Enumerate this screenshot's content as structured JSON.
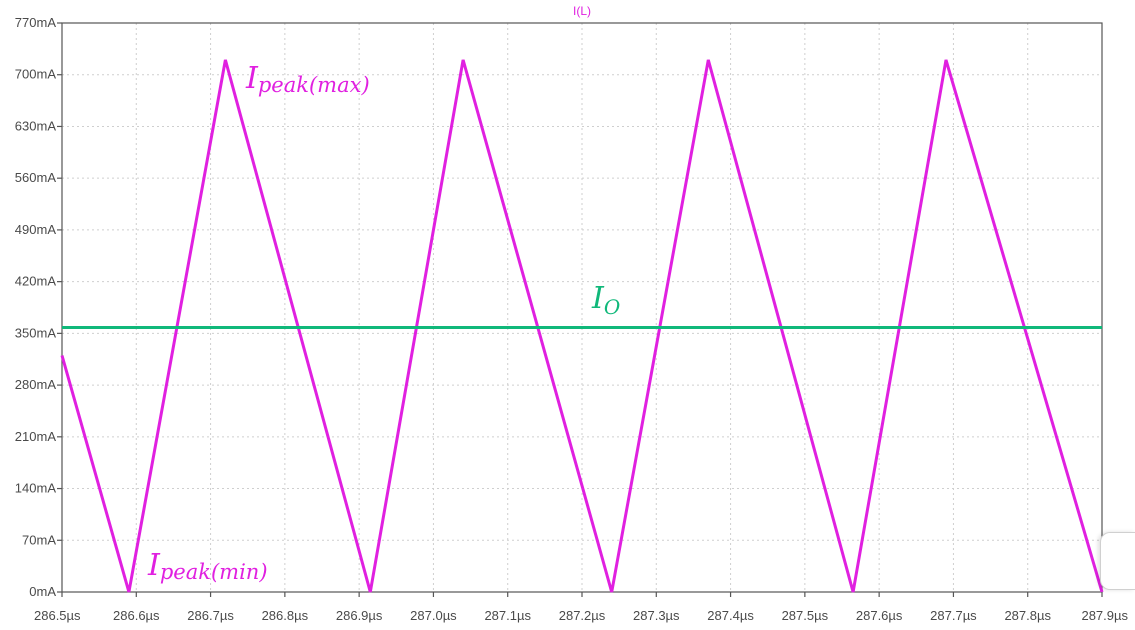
{
  "chart_data": {
    "type": "line",
    "title": "I(L)",
    "xlabel": "",
    "ylabel": "",
    "xlim": [
      286.5,
      287.9
    ],
    "ylim": [
      0,
      770
    ],
    "x_ticks": [
      "286.5µs",
      "286.6µs",
      "286.7µs",
      "286.8µs",
      "286.9µs",
      "287.0µs",
      "287.1µs",
      "287.2µs",
      "287.3µs",
      "287.4µs",
      "287.5µs",
      "287.6µs",
      "287.7µs",
      "287.8µs",
      "287.9µs"
    ],
    "y_ticks": [
      "0mA",
      "70mA",
      "140mA",
      "210mA",
      "280mA",
      "350mA",
      "420mA",
      "490mA",
      "560mA",
      "630mA",
      "700mA",
      "770mA"
    ],
    "y_tick_values": [
      0,
      70,
      140,
      210,
      280,
      350,
      420,
      490,
      560,
      630,
      700,
      770
    ],
    "grid": true,
    "series": [
      {
        "name": "I(L)",
        "color": "#e020e0",
        "x": [
          286.5,
          286.59,
          286.72,
          286.915,
          287.04,
          287.24,
          287.37,
          287.565,
          287.69,
          287.9
        ],
        "y": [
          320,
          0,
          720,
          0,
          720,
          0,
          720,
          0,
          720,
          0
        ]
      },
      {
        "name": "",
        "color": "#10b87a",
        "x": [
          286.5,
          287.9
        ],
        "y": [
          358,
          358
        ]
      }
    ],
    "annotations": [
      {
        "text_main": "I",
        "text_sub": "peak(max)",
        "color": "#e020e0"
      },
      {
        "text_main": "I",
        "text_sub": "peak(min)",
        "color": "#e020e0"
      },
      {
        "text_main": "I",
        "text_sub": "O",
        "color": "#10b87a"
      }
    ]
  }
}
